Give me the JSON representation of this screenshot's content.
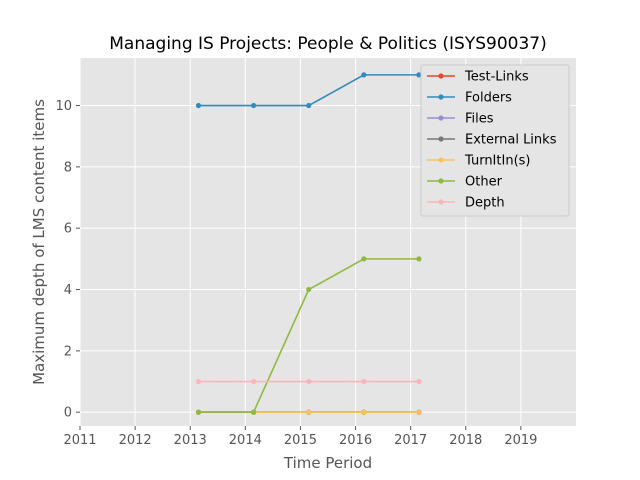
{
  "chart_data": {
    "type": "line",
    "title": "Managing IS Projects: People & Politics (ISYS90037)",
    "xlabel": "Time Period",
    "ylabel": "Maximum depth of LMS content items",
    "xlim": [
      2011,
      2020
    ],
    "ylim": [
      -0.45,
      11.55
    ],
    "xticks": [
      2011,
      2012,
      2013,
      2014,
      2015,
      2016,
      2017,
      2018,
      2019
    ],
    "yticks": [
      0,
      2,
      4,
      6,
      8,
      10
    ],
    "grid": true,
    "legend_position": "top-right",
    "x": [
      2013.15,
      2014.15,
      2015.15,
      2016.15,
      2017.15
    ],
    "series": [
      {
        "name": "Test-Links",
        "color": "#E24A33",
        "values": [
          0,
          0,
          0,
          0,
          0
        ]
      },
      {
        "name": "Folders",
        "color": "#348ABD",
        "values": [
          10,
          10,
          10,
          11,
          11
        ]
      },
      {
        "name": "Files",
        "color": "#988ED5",
        "values": [
          0,
          0,
          0,
          0,
          0
        ]
      },
      {
        "name": "External Links",
        "color": "#777777",
        "values": [
          0,
          0,
          0,
          0,
          0
        ]
      },
      {
        "name": "TurnItIn(s)",
        "color": "#FBC15E",
        "values": [
          0,
          0,
          0,
          0,
          0
        ]
      },
      {
        "name": "Other",
        "color": "#8EBA42",
        "values": [
          0,
          0,
          4,
          5,
          5
        ]
      },
      {
        "name": "Depth",
        "color": "#FFB5B8",
        "values": [
          1,
          1,
          1,
          1,
          1
        ]
      }
    ]
  }
}
